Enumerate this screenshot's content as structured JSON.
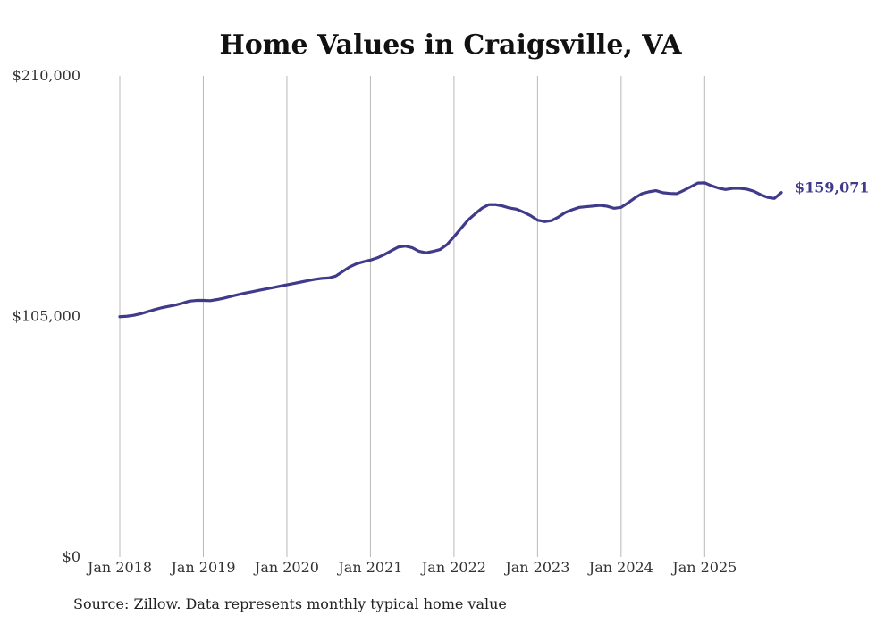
{
  "chart_data": {
    "type": "line",
    "title": "Home Values in Craigsville, VA",
    "source": "Source: Zillow. Data represents monthly typical home value",
    "line_color": "#3f3a8a",
    "grid_color": "#b8b8b8",
    "y_axis": {
      "ylim": [
        0,
        210000
      ],
      "ticks": [
        0,
        105000,
        210000
      ],
      "tick_labels": [
        "$0",
        "$105,000",
        "$210,000"
      ]
    },
    "x_axis": {
      "ticks": [
        "2018-01",
        "2019-01",
        "2020-01",
        "2021-01",
        "2022-01",
        "2023-01",
        "2024-01",
        "2025-01"
      ],
      "tick_labels": [
        "Jan 2018",
        "Jan 2019",
        "Jan 2020",
        "Jan 2021",
        "Jan 2022",
        "Jan 2023",
        "Jan 2024",
        "Jan 2025"
      ],
      "xlim": [
        "2018-01",
        "2025-12"
      ],
      "grid": true
    },
    "end_label": "$159,071",
    "series": [
      {
        "x": [
          "2018-01",
          "2018-02",
          "2018-03",
          "2018-04",
          "2018-05",
          "2018-06",
          "2018-07",
          "2018-08",
          "2018-09",
          "2018-10",
          "2018-11",
          "2018-12",
          "2019-01",
          "2019-02",
          "2019-03",
          "2019-04",
          "2019-05",
          "2019-06",
          "2019-07",
          "2019-08",
          "2019-09",
          "2019-10",
          "2019-11",
          "2019-12",
          "2020-01",
          "2020-02",
          "2020-03",
          "2020-04",
          "2020-05",
          "2020-06",
          "2020-07",
          "2020-08",
          "2020-09",
          "2020-10",
          "2020-11",
          "2020-12",
          "2021-01",
          "2021-02",
          "2021-03",
          "2021-04",
          "2021-05",
          "2021-06",
          "2021-07",
          "2021-08",
          "2021-09",
          "2021-10",
          "2021-11",
          "2021-12",
          "2022-01",
          "2022-02",
          "2022-03",
          "2022-04",
          "2022-05",
          "2022-06",
          "2022-07",
          "2022-08",
          "2022-09",
          "2022-10",
          "2022-11",
          "2022-12",
          "2023-01",
          "2023-02",
          "2023-03",
          "2023-04",
          "2023-05",
          "2023-06",
          "2023-07",
          "2023-08",
          "2023-09",
          "2023-10",
          "2023-11",
          "2023-12",
          "2024-01",
          "2024-02",
          "2024-03",
          "2024-04",
          "2024-05",
          "2024-06",
          "2024-07",
          "2024-08",
          "2024-09",
          "2024-10",
          "2024-11",
          "2024-12",
          "2025-01",
          "2025-02",
          "2025-03",
          "2025-04",
          "2025-05",
          "2025-06",
          "2025-07",
          "2025-08",
          "2025-09",
          "2025-10",
          "2025-11",
          "2025-12"
        ],
        "values": [
          104900,
          105100,
          105500,
          106200,
          107100,
          108000,
          108800,
          109400,
          110000,
          110800,
          111700,
          112000,
          112000,
          111900,
          112400,
          113000,
          113800,
          114500,
          115200,
          115800,
          116400,
          117000,
          117600,
          118200,
          118800,
          119400,
          120000,
          120600,
          121200,
          121600,
          121800,
          122600,
          124600,
          126600,
          128000,
          128900,
          129600,
          130600,
          132000,
          133700,
          135300,
          135700,
          135000,
          133400,
          132800,
          133400,
          134200,
          136400,
          139800,
          143400,
          147000,
          149700,
          152200,
          153800,
          153800,
          153200,
          152300,
          151800,
          150500,
          149000,
          147000,
          146400,
          146800,
          148400,
          150400,
          151600,
          152600,
          152900,
          153200,
          153500,
          153100,
          152200,
          152600,
          154600,
          156800,
          158600,
          159400,
          159900,
          159000,
          158700,
          158600,
          160000,
          161600,
          163200,
          163300,
          162000,
          161000,
          160400,
          160900,
          160900,
          160600,
          159700,
          158200,
          157000,
          156500,
          159071
        ]
      }
    ]
  }
}
